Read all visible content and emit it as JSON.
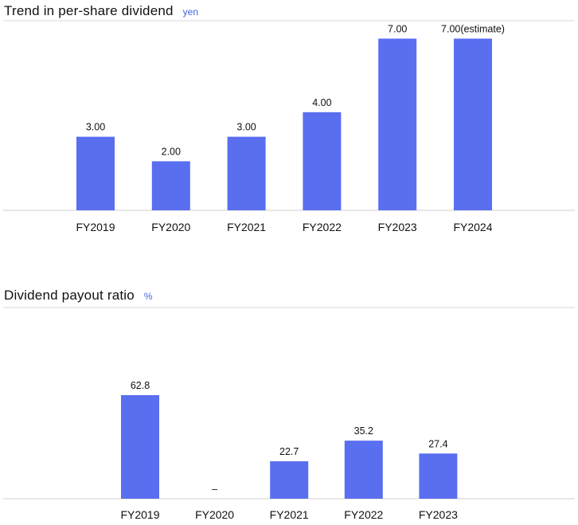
{
  "accent_color": "#5a6ef0",
  "chart_data": [
    {
      "type": "bar",
      "title": "Trend in per-share dividend",
      "unit": "yen",
      "categories": [
        "FY2019",
        "FY2020",
        "FY2021",
        "FY2022",
        "FY2023",
        "FY2024"
      ],
      "values": [
        3.0,
        2.0,
        3.0,
        4.0,
        7.0,
        7.0
      ],
      "labels": [
        "3.00",
        "2.00",
        "3.00",
        "4.00",
        "7.00",
        "7.00(estimate)"
      ],
      "ylim": [
        0,
        7.6
      ],
      "grid": false,
      "legend": "none"
    },
    {
      "type": "bar",
      "title": "Dividend payout ratio",
      "unit": "%",
      "categories": [
        "FY2019",
        "FY2020",
        "FY2021",
        "FY2022",
        "FY2023"
      ],
      "values": [
        62.8,
        null,
        22.7,
        35.2,
        27.4
      ],
      "labels": [
        "62.8",
        "–",
        "22.7",
        "35.2",
        "27.4"
      ],
      "ylim": [
        0,
        114
      ],
      "grid": false,
      "legend": "none"
    }
  ]
}
